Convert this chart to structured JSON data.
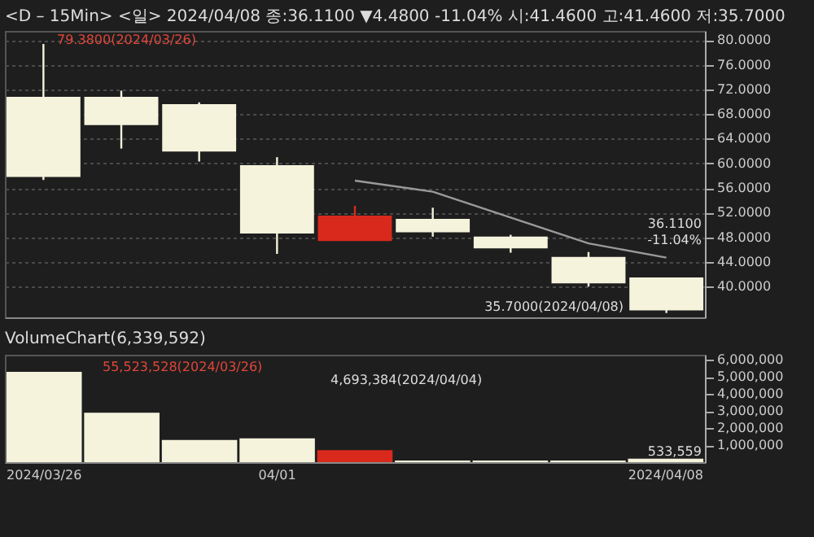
{
  "chart_data": [
    {
      "type": "candlestick",
      "title": "<D – 15Min> <일> 2024/04/08 종:36.1100 ▼4.4800 -11.04% 시:41.4600 고:41.4600 저:35.7000",
      "categories": [
        null,
        null,
        null,
        null,
        null,
        null,
        null,
        null,
        null
      ],
      "ohlc": [
        [
          70.8,
          79.38,
          57.3,
          57.8
        ],
        [
          70.8,
          71.8,
          62.4,
          66.2
        ],
        [
          69.6,
          69.9,
          60.3,
          61.9
        ],
        [
          59.7,
          61.0,
          45.3,
          48.6
        ],
        [
          47.4,
          53.1,
          47.4,
          51.5
        ],
        [
          51.0,
          52.8,
          48.1,
          48.8
        ],
        [
          48.1,
          48.4,
          45.5,
          46.2
        ],
        [
          44.8,
          45.6,
          40.0,
          40.5
        ],
        [
          41.46,
          41.46,
          35.7,
          36.11
        ]
      ],
      "colors": [
        "#f5f3dc",
        "#f5f3dc",
        "#f5f3dc",
        "#f5f3dc",
        "#d9291c",
        "#f5f3dc",
        "#f5f3dc",
        "#f5f3dc",
        "#f5f3dc"
      ],
      "series": [
        {
          "type": "line",
          "color": "#9a9a9a",
          "values": [
            null,
            null,
            null,
            null,
            57.2,
            55.4,
            51.2,
            47.0,
            44.7
          ]
        }
      ],
      "ylim": [
        35,
        81.5
      ],
      "yticks": [
        {
          "value": 40,
          "label": "40.0000"
        },
        {
          "value": 44,
          "label": "44.0000"
        },
        {
          "value": 48,
          "label": "48.0000"
        },
        {
          "value": 52,
          "label": "52.0000"
        },
        {
          "value": 56,
          "label": "56.0000"
        },
        {
          "value": 60,
          "label": "60.0000"
        },
        {
          "value": 64,
          "label": "64.0000"
        },
        {
          "value": 68,
          "label": "68.0000"
        },
        {
          "value": 72,
          "label": "72.0000"
        },
        {
          "value": 76,
          "label": "76.0000"
        },
        {
          "value": 80,
          "label": "80.0000"
        }
      ],
      "grid": "y",
      "tick_labels": "y",
      "annotations": [
        "79.3800(2024/03/26)",
        "35.7000(2024/04/08)",
        "36.1100",
        "-11.04%"
      ]
    },
    {
      "type": "bar",
      "title": "VolumeChart(6,339,592)",
      "categories": [
        "2024/03/26",
        null,
        null,
        "04/01",
        null,
        null,
        null,
        null,
        "2024/04/08"
      ],
      "values": [
        5300000,
        2900000,
        1300000,
        1400000,
        700000,
        100000,
        100000,
        100000,
        200000
      ],
      "colors": [
        "#f5f3dc",
        "#f5f3dc",
        "#f5f3dc",
        "#f5f3dc",
        "#d9291c",
        "#f5f3dc",
        "#f5f3dc",
        "#f5f3dc",
        "#f5f3dc"
      ],
      "ylim": [
        0,
        6300000
      ],
      "yticks": [
        {
          "value": 1000000,
          "label": "1,000,000"
        },
        {
          "value": 2000000,
          "label": "2,000,000"
        },
        {
          "value": 3000000,
          "label": "3,000,000"
        },
        {
          "value": 4000000,
          "label": "4,000,000"
        },
        {
          "value": 5000000,
          "label": "5,000,000"
        },
        {
          "value": 6000000,
          "label": "6,000,000"
        }
      ],
      "grid": false,
      "annotations": [
        "55,523,528(2024/03/26)",
        "4,693,384(2024/04/04)",
        "533,559"
      ]
    }
  ]
}
